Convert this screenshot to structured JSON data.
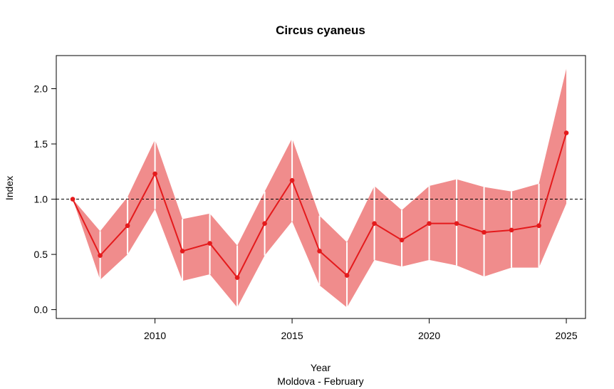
{
  "chart_data": {
    "type": "line",
    "title": "Circus cyaneus",
    "xlabel": "Year",
    "ylabel": "Index",
    "subtitle": "Moldova - February",
    "xlim": [
      2006.4,
      2025.7
    ],
    "ylim": [
      -0.08,
      2.3
    ],
    "x_ticks": [
      2010,
      2015,
      2020,
      2025
    ],
    "y_ticks": [
      0.0,
      0.5,
      1.0,
      1.5,
      2.0
    ],
    "y_tick_labels": [
      "0.0",
      "0.5",
      "1.0",
      "1.5",
      "2.0"
    ],
    "reference_line": 1.0,
    "grid": false,
    "colors": {
      "line": "#e41a1c",
      "band": "#f08c8c",
      "separator": "#ffffff"
    },
    "series": [
      {
        "x": [
          2007,
          2008,
          2009,
          2010,
          2011,
          2012,
          2013,
          2014,
          2015,
          2016,
          2017,
          2018,
          2019,
          2020,
          2021,
          2022,
          2023,
          2024,
          2025
        ],
        "values": [
          1.0,
          0.49,
          0.76,
          1.23,
          0.53,
          0.6,
          0.29,
          0.78,
          1.17,
          0.53,
          0.31,
          0.78,
          0.63,
          0.78,
          0.78,
          0.7,
          0.72,
          0.76,
          1.6
        ],
        "lower": [
          1.0,
          0.27,
          0.5,
          0.91,
          0.26,
          0.32,
          0.02,
          0.49,
          0.8,
          0.22,
          0.02,
          0.45,
          0.39,
          0.45,
          0.4,
          0.3,
          0.38,
          0.38,
          0.96
        ],
        "upper": [
          1.0,
          0.71,
          1.02,
          1.54,
          0.82,
          0.87,
          0.58,
          1.07,
          1.55,
          0.85,
          0.61,
          1.12,
          0.9,
          1.12,
          1.18,
          1.11,
          1.07,
          1.14,
          2.18
        ]
      }
    ]
  }
}
